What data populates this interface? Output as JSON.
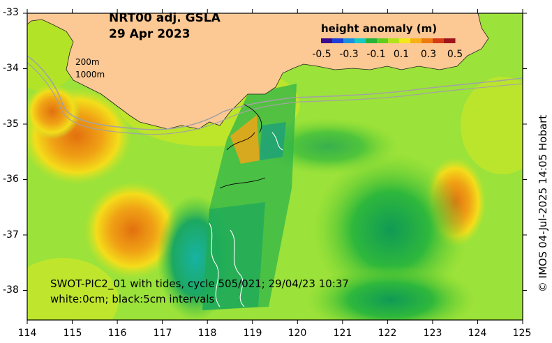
{
  "title": {
    "line1": "NRT00 adj. GSLA",
    "line2": "29 Apr 2023"
  },
  "colorbar": {
    "title": "height anomaly (m)",
    "ticks": [
      "-0.5",
      "-0.3",
      "-0.1",
      "0.1",
      "0.3",
      "0.5"
    ],
    "colors": [
      "#3b0d8c",
      "#1e3fd6",
      "#1a8fe0",
      "#15c9c4",
      "#25b33a",
      "#62cc1f",
      "#b4e21a",
      "#f2e81a",
      "#f8b115",
      "#ee7a10",
      "#d43d12",
      "#a0151c"
    ]
  },
  "depth_contours": [
    "200m",
    "1000m"
  ],
  "swot_annotation": {
    "line1": "SWOT-PIC2_01 with tides, cycle 505/021; 29/04/23 10:37",
    "line2": "white:0cm; black:5cm intervals"
  },
  "axes": {
    "latitude_labels": [
      "-33",
      "-34",
      "-35",
      "-36",
      "-37",
      "-38"
    ],
    "longitude_labels": [
      "114",
      "115",
      "116",
      "117",
      "118",
      "119",
      "120",
      "121",
      "122",
      "123",
      "124",
      "125"
    ]
  },
  "credit": "© IMOS 04-Jul-2025 14:05 Hobart",
  "colors": {
    "land": "#fcc894",
    "ocean_base": "#9be23a",
    "frame": "#000000"
  }
}
